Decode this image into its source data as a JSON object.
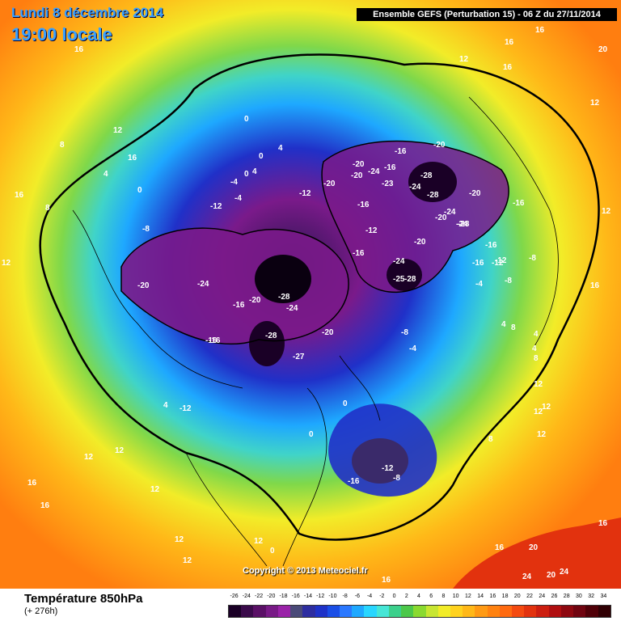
{
  "header": {
    "date_line": "Lundi 8 décembre 2014",
    "time_line": "19:00 locale",
    "run_info": "Ensemble GEFS (Perturbation 15)  -  06 Z du 27/11/2014"
  },
  "map": {
    "copyright": "Copyright © 2013 Meteociel.fr",
    "contour_labels": [
      "16",
      "20",
      "16",
      "16",
      "16",
      "12",
      "12",
      "0",
      "0",
      "4",
      "4",
      "8",
      "12",
      "16",
      "12",
      "4",
      "0",
      "0",
      "16",
      "8",
      "-4",
      "-4",
      "-8",
      "-12",
      "-12",
      "-12",
      "-20",
      "-20",
      "-20",
      "-24",
      "-16",
      "-23",
      "-16",
      "-28",
      "-24",
      "-28",
      "-20",
      "-24",
      "-20",
      "-16",
      "-16",
      "-20",
      "-24",
      "-28",
      "-20",
      "-12",
      "-16",
      "-16",
      "-12",
      "-8",
      "-16",
      "-16",
      "-4",
      "-8",
      "-20",
      "-24",
      "-16",
      "-20",
      "-28",
      "-24",
      "-12",
      "-16",
      "-24",
      "-28",
      "-27",
      "-20",
      "-25",
      "-28",
      "-8",
      "-4",
      "0",
      "4",
      "8",
      "12",
      "16",
      "12",
      "12",
      "8",
      "4",
      "4",
      "8",
      "12",
      "12",
      "-12",
      "-8",
      "-16",
      "0",
      "0",
      "12",
      "12",
      "16",
      "16",
      "12",
      "12",
      "16",
      "12",
      "16",
      "20",
      "24",
      "20",
      "24",
      "16",
      "4",
      "12"
    ]
  },
  "legend": {
    "variable": "Température 850hPa",
    "forecast_hour": "(+ 276h)",
    "scale_values": [
      "-26",
      "-24",
      "-22",
      "-20",
      "-18",
      "-16",
      "-14",
      "-12",
      "-10",
      "-8",
      "-6",
      "-4",
      "-2",
      "0",
      "2",
      "4",
      "6",
      "8",
      "10",
      "12",
      "14",
      "16",
      "18",
      "20",
      "22",
      "24",
      "26",
      "28",
      "30",
      "32",
      "34"
    ],
    "scale_colors": [
      "#1a0026",
      "#3a0a4a",
      "#5a1066",
      "#781a86",
      "#9a22a8",
      "#4a4a78",
      "#2d2da0",
      "#1e32c8",
      "#1a4ee6",
      "#2a78ff",
      "#1ea8ff",
      "#28d6ff",
      "#46e6d6",
      "#3cd08c",
      "#4cc84a",
      "#8ada30",
      "#c8e632",
      "#f2ec28",
      "#ffd21e",
      "#ffb818",
      "#ff9a14",
      "#ff8210",
      "#ff6a10",
      "#f44a10",
      "#e2320e",
      "#cc1e10",
      "#b00e10",
      "#8e0810",
      "#700410",
      "#500008",
      "#300004"
    ]
  }
}
